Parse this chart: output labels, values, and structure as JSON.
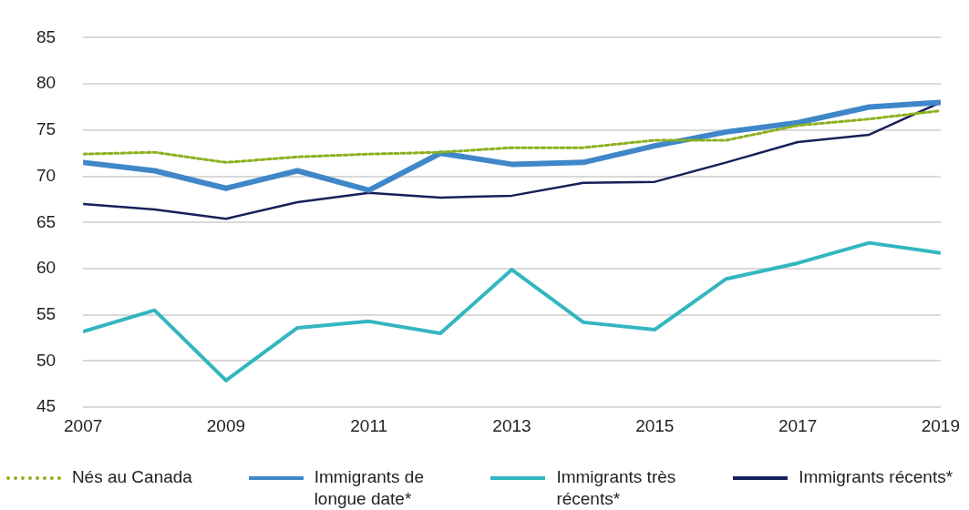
{
  "chart_data": {
    "type": "line",
    "x": [
      2007,
      2008,
      2009,
      2010,
      2011,
      2012,
      2013,
      2014,
      2015,
      2016,
      2017,
      2018,
      2019
    ],
    "xlim": [
      2007,
      2019
    ],
    "xticks": [
      2007,
      2009,
      2011,
      2013,
      2015,
      2017,
      2019
    ],
    "ylim": [
      45,
      85
    ],
    "yticks": [
      45,
      50,
      55,
      60,
      65,
      70,
      75,
      80,
      85
    ],
    "grid": "y",
    "legend": "bottom",
    "marker": "none",
    "series": [
      {
        "name": "Nés au Canada",
        "color": "#8db01f",
        "line_style": "dotted",
        "values": [
          72.4,
          72.6,
          71.5,
          72.1,
          72.4,
          72.6,
          73.1,
          73.1,
          73.9,
          73.9,
          75.5,
          76.2,
          77.1
        ]
      },
      {
        "name": "Immigrants de longue date*",
        "color": "#3f87c8",
        "line_style": "solid",
        "values": [
          71.5,
          70.6,
          68.7,
          70.6,
          68.5,
          72.5,
          71.3,
          71.5,
          73.3,
          74.8,
          75.8,
          77.5,
          78.0
        ]
      },
      {
        "name": "Immigrants très récents*",
        "color": "#33b6bf",
        "line_style": "solid",
        "values": [
          53.2,
          55.5,
          47.9,
          53.6,
          54.3,
          53.0,
          59.9,
          54.2,
          53.4,
          58.9,
          60.6,
          62.8,
          61.7
        ]
      },
      {
        "name": "Immigrants récents*",
        "color": "#16205a",
        "line_style": "solid",
        "values": [
          67.0,
          66.4,
          65.4,
          67.2,
          68.2,
          67.7,
          67.9,
          69.3,
          69.4,
          71.5,
          73.7,
          74.5,
          78.0
        ]
      }
    ]
  }
}
